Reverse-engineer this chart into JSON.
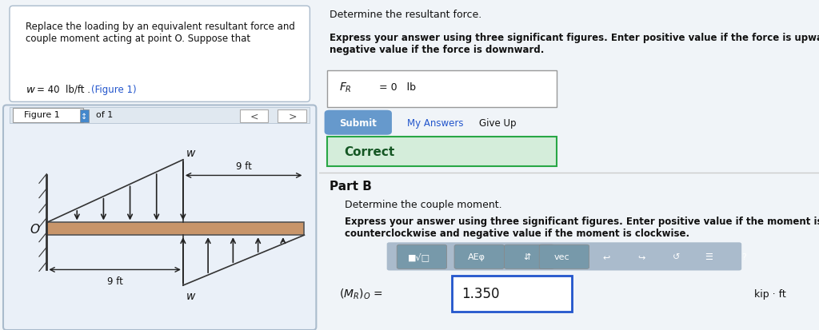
{
  "bg_color": "#f0f4f8",
  "white": "#ffffff",
  "left_panel_bg": "#e8f0f8",
  "figure_panel_bg": "#eaf0f8",
  "figure_inner_bg": "#f8f8f8",
  "beam_color": "#c8956a",
  "beam_edge_color": "#555555",
  "arrow_color": "#222222",
  "dim_color": "#222222",
  "text_color": "#111111",
  "blue_link": "#2255cc",
  "green_correct_bg": "#d4edda",
  "green_correct_border": "#28a745",
  "green_correct_text": "#155724",
  "submit_bg": "#6699cc",
  "submit_text": "#ffffff",
  "toolbar_bg": "#aabbcc",
  "input_border": "#2255cc",
  "part_b_border": "#cccccc",
  "prob_text": "Replace the loading by an equivalent resultant force and\ncouple moment acting at point O. Suppose that",
  "prob_w_text": "w = 40  lb/ft . (Figure 1)",
  "figure_label": "Figure 1",
  "of_1": "of 1",
  "O_label": "O",
  "w_top": "w",
  "w_bottom": "w",
  "dim_9ft_top": "9 ft",
  "dim_9ft_bottom": "9 ft",
  "part_a_head": "Determine the resultant force.",
  "part_a_bold": "Express your answer using three significant figures. Enter positive value if the force is upward and\nnegative value if the force is downward.",
  "FR_text": "Fₜ = 0   lb",
  "submit_label": "Submit",
  "my_answers": "My Answers",
  "give_up": "Give Up",
  "correct_text": "Correct",
  "part_b_label": "Part B",
  "part_b_sub": "Determine the couple moment.",
  "part_b_bold": "Express your answer using three significant figures. Enter positive value if the moment is\ncounterclockwise and negative value if the moment is clockwise.",
  "MR_text": "(Mₜ)ₒ =",
  "MR_value": "1.350",
  "kip_ft": "kip · ft"
}
